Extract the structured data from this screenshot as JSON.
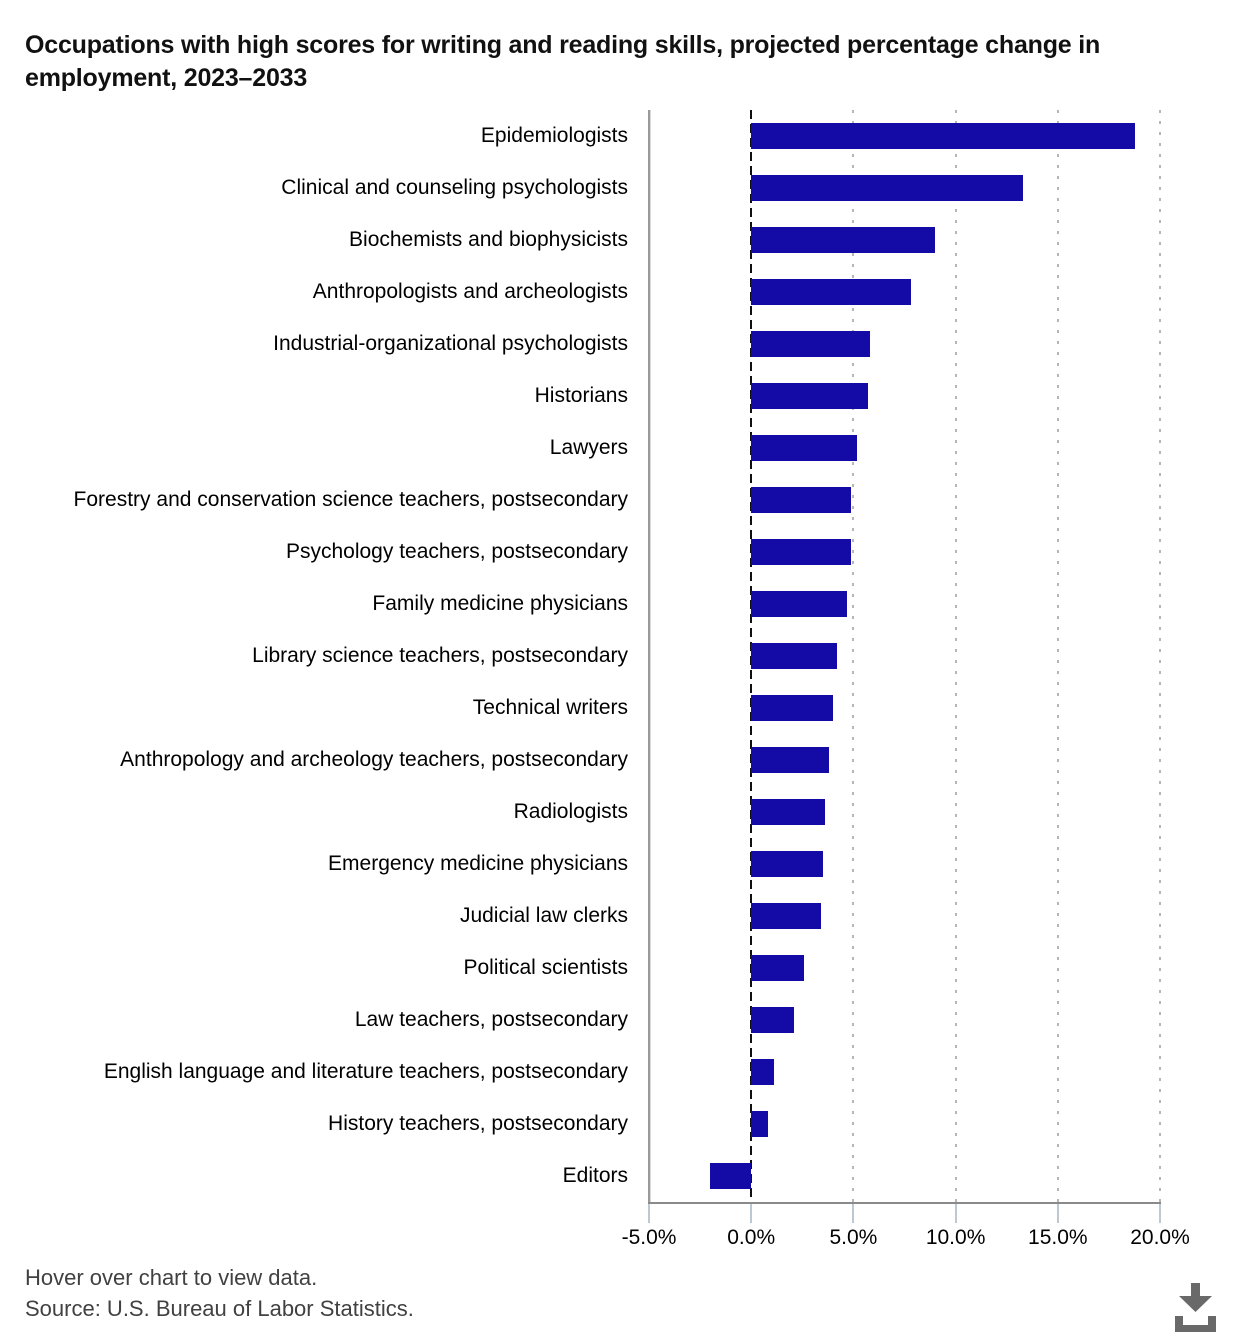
{
  "title": "Occupations with high scores for writing and reading skills, projected percentage change in employment, 2023–2033",
  "footer": {
    "hover_note": "Hover over chart to view data.",
    "source": "Source: U.S. Bureau of Labor Statistics."
  },
  "download_icon": "download-arrow-into-tray",
  "colors": {
    "bar": "#140aa5",
    "axis": "#8a8a8a",
    "gridline": "#b6b6b6",
    "zero_line": "#101010",
    "tick_mark": "#bcc8d2",
    "footer_text": "#414141",
    "download_icon": "#696969"
  },
  "chart_data": {
    "type": "bar",
    "orientation": "horizontal",
    "title": "Occupations with high scores for writing and reading skills, projected percentage change in employment, 2023–2033",
    "xlabel": "",
    "ylabel": "",
    "xlim": [
      -5,
      20
    ],
    "x_ticks": [
      "-5.0%",
      "0.0%",
      "5.0%",
      "10.0%",
      "15.0%",
      "20.0%"
    ],
    "x_tick_values": [
      -5,
      0,
      5,
      10,
      15,
      20
    ],
    "grid": "vertical dotted at 5,10,15,20; dashed vertical line at 0",
    "legend": "none",
    "value_unit": "%",
    "categories": [
      "Epidemiologists",
      "Clinical and counseling psychologists",
      "Biochemists and biophysicists",
      "Anthropologists and archeologists",
      "Industrial-organizational psychologists",
      "Historians",
      "Lawyers",
      "Forestry and conservation science teachers, postsecondary",
      "Psychology teachers, postsecondary",
      "Family medicine physicians",
      "Library science teachers, postsecondary",
      "Technical writers",
      "Anthropology and archeology teachers, postsecondary",
      "Radiologists",
      "Emergency medicine physicians",
      "Judicial law clerks",
      "Political scientists",
      "Law teachers, postsecondary",
      "English language and literature teachers, postsecondary",
      "History teachers, postsecondary",
      "Editors"
    ],
    "values": [
      18.8,
      13.3,
      9.0,
      7.8,
      5.8,
      5.7,
      5.2,
      4.9,
      4.9,
      4.7,
      4.2,
      4.0,
      3.8,
      3.6,
      3.5,
      3.4,
      2.6,
      2.1,
      1.1,
      0.8,
      -2.0
    ]
  }
}
